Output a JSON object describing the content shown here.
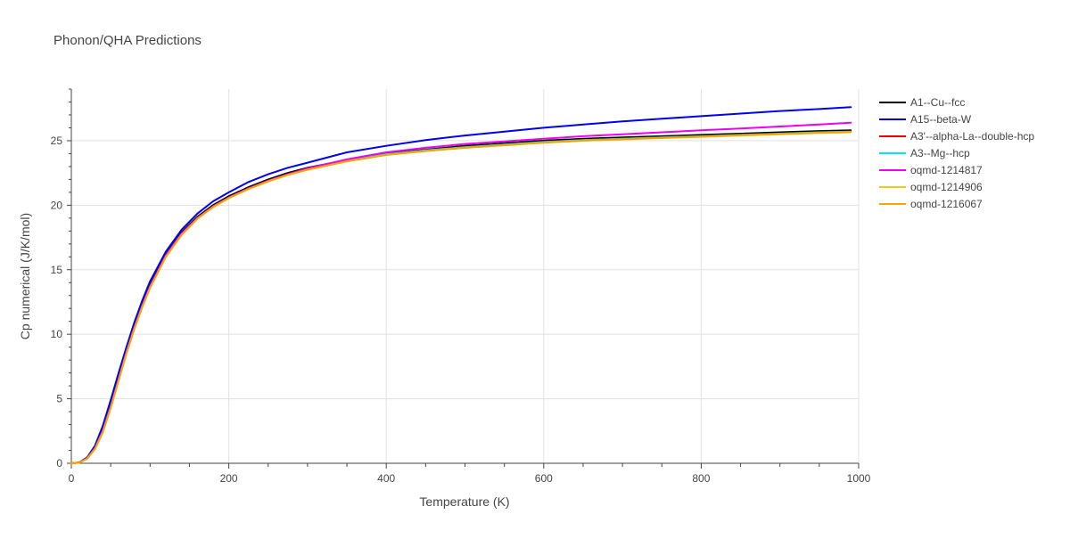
{
  "chart_data": {
    "type": "line",
    "title": "Phonon/QHA Predictions",
    "xlabel": "Temperature (K)",
    "ylabel": "Cp numerical (J/K/mol)",
    "xlim": [
      0,
      1000
    ],
    "ylim": [
      0,
      29
    ],
    "xticks": [
      0,
      200,
      400,
      600,
      800,
      1000
    ],
    "yticks": [
      0,
      5,
      10,
      15,
      20,
      25
    ],
    "grid": true,
    "legend_position": "right",
    "x": [
      0,
      10,
      20,
      30,
      40,
      50,
      60,
      70,
      80,
      90,
      100,
      120,
      140,
      160,
      180,
      200,
      225,
      250,
      275,
      300,
      350,
      400,
      450,
      500,
      550,
      600,
      650,
      700,
      750,
      800,
      850,
      900,
      950,
      990
    ],
    "series": [
      {
        "name": "A1--Cu--fcc",
        "color": "#000000",
        "values": [
          0,
          0.05,
          0.4,
          1.2,
          2.6,
          4.5,
          6.6,
          8.7,
          10.6,
          12.3,
          13.8,
          16.2,
          17.9,
          19.1,
          20.0,
          20.7,
          21.4,
          22.0,
          22.5,
          22.9,
          23.5,
          24.0,
          24.3,
          24.6,
          24.8,
          25.0,
          25.15,
          25.25,
          25.35,
          25.45,
          25.55,
          25.65,
          25.75,
          25.8
        ]
      },
      {
        "name": "A15--beta-W",
        "color": "#0000ee",
        "values": [
          0,
          0.06,
          0.45,
          1.35,
          2.9,
          4.9,
          7.0,
          9.0,
          10.9,
          12.6,
          14.1,
          16.4,
          18.1,
          19.35,
          20.3,
          21.0,
          21.8,
          22.4,
          22.9,
          23.3,
          24.1,
          24.6,
          25.05,
          25.4,
          25.7,
          26.0,
          26.25,
          26.5,
          26.7,
          26.9,
          27.1,
          27.3,
          27.45,
          27.6
        ]
      },
      {
        "name": "A3'--alpha-La--double-hcp",
        "color": "#ee0000",
        "values": [
          0,
          0.05,
          0.38,
          1.15,
          2.5,
          4.4,
          6.5,
          8.6,
          10.5,
          12.2,
          13.7,
          16.1,
          17.8,
          19.0,
          19.9,
          20.6,
          21.3,
          21.9,
          22.4,
          22.8,
          23.45,
          23.95,
          24.25,
          24.5,
          24.7,
          24.9,
          25.05,
          25.15,
          25.25,
          25.35,
          25.45,
          25.55,
          25.65,
          25.7
        ]
      },
      {
        "name": "A3--Mg--hcp",
        "color": "#00e5ee",
        "values": [
          0,
          0.05,
          0.38,
          1.15,
          2.5,
          4.4,
          6.5,
          8.6,
          10.5,
          12.2,
          13.7,
          16.1,
          17.8,
          19.0,
          19.9,
          20.6,
          21.3,
          21.9,
          22.4,
          22.8,
          23.45,
          23.95,
          24.25,
          24.5,
          24.7,
          24.9,
          25.05,
          25.15,
          25.25,
          25.35,
          25.45,
          25.55,
          25.65,
          25.7
        ]
      },
      {
        "name": "oqmd-1214817",
        "color": "#ee00ee",
        "values": [
          0,
          0.05,
          0.38,
          1.15,
          2.5,
          4.4,
          6.5,
          8.6,
          10.5,
          12.2,
          13.7,
          16.1,
          17.8,
          19.0,
          19.9,
          20.6,
          21.3,
          21.9,
          22.4,
          22.85,
          23.55,
          24.1,
          24.45,
          24.75,
          24.95,
          25.15,
          25.35,
          25.5,
          25.65,
          25.8,
          25.95,
          26.1,
          26.25,
          26.4
        ]
      },
      {
        "name": "oqmd-1214906",
        "color": "#f5c518",
        "values": [
          0,
          0.04,
          0.35,
          1.1,
          2.4,
          4.3,
          6.4,
          8.5,
          10.4,
          12.1,
          13.6,
          16.0,
          17.7,
          18.95,
          19.85,
          20.55,
          21.25,
          21.85,
          22.35,
          22.75,
          23.4,
          23.9,
          24.2,
          24.45,
          24.65,
          24.85,
          25.0,
          25.1,
          25.2,
          25.3,
          25.4,
          25.5,
          25.6,
          25.65
        ]
      },
      {
        "name": "oqmd-1216067",
        "color": "#f5a300",
        "values": [
          0,
          0.04,
          0.35,
          1.1,
          2.4,
          4.3,
          6.4,
          8.5,
          10.4,
          12.1,
          13.6,
          16.0,
          17.7,
          18.95,
          19.85,
          20.55,
          21.25,
          21.85,
          22.35,
          22.75,
          23.4,
          23.9,
          24.2,
          24.45,
          24.65,
          24.85,
          25.0,
          25.12,
          25.22,
          25.32,
          25.42,
          25.52,
          25.62,
          25.68
        ]
      }
    ]
  }
}
